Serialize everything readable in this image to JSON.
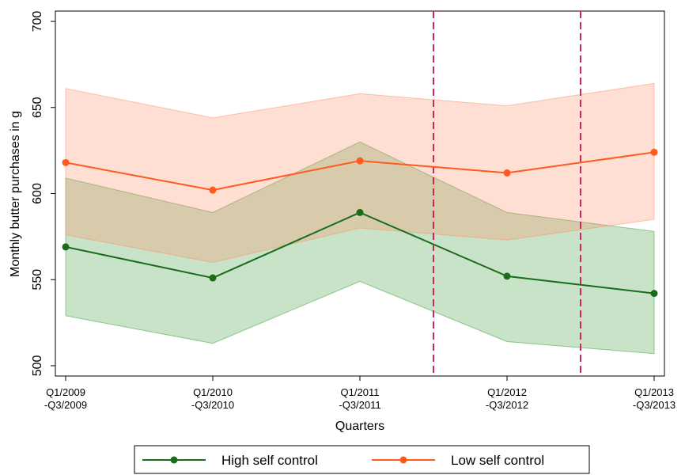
{
  "chart_data": {
    "type": "line",
    "x_label": "Quarters",
    "y_label": "Monthly butter purchases in g",
    "categories": [
      [
        "Q1/2009",
        "-Q3/2009"
      ],
      [
        "Q1/2010",
        "-Q3/2010"
      ],
      [
        "Q1/2011",
        "-Q3/2011"
      ],
      [
        "Q1/2012",
        "-Q3/2012"
      ],
      [
        "Q1/2013",
        "-Q3/2013"
      ]
    ],
    "series": [
      {
        "name": "High self control",
        "color": "#1a6b1a",
        "band_color": "#3a9a3a",
        "values": [
          569,
          551,
          589,
          552,
          542
        ],
        "lower": [
          529,
          513,
          549,
          514,
          507
        ],
        "upper": [
          609,
          589,
          630,
          589,
          578
        ]
      },
      {
        "name": "Low self control",
        "color": "#ff5a1f",
        "band_color": "#ff8c66",
        "values": [
          618,
          602,
          619,
          612,
          624
        ],
        "lower": [
          576,
          560,
          580,
          573,
          585
        ],
        "upper": [
          661,
          644,
          658,
          651,
          664
        ]
      }
    ],
    "vlines": [
      2.5,
      3.5
    ],
    "vline_color": "#c8285a",
    "ylim": [
      494,
      706
    ],
    "yticks": [
      500,
      550,
      600,
      650,
      700
    ],
    "legend": "bottom"
  }
}
